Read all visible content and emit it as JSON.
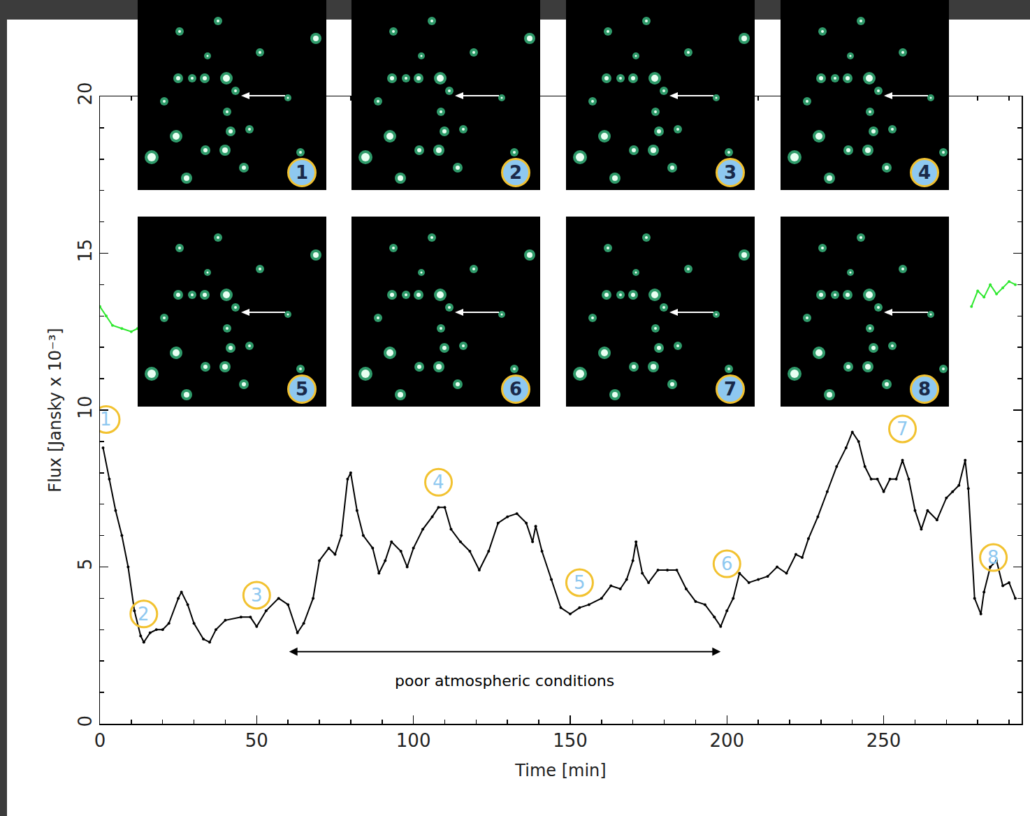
{
  "chart_data": {
    "type": "line",
    "x_label": "Time [min]",
    "y_label": "Flux [Jansky x 10⁻³]",
    "xlim": [
      0,
      294
    ],
    "xticks": [
      0,
      50,
      100,
      150,
      200,
      250
    ],
    "ylim": [
      0,
      20
    ],
    "yticks": [
      0,
      5,
      10,
      15,
      20
    ],
    "grid": false,
    "series": [
      {
        "color": "#000000",
        "marker": "circle",
        "line_style": "solid",
        "x": [
          1,
          3,
          5,
          7,
          9,
          11,
          13,
          14,
          16,
          18,
          20,
          22,
          25,
          26,
          28,
          30,
          33,
          35,
          37,
          40,
          45,
          48,
          50,
          53,
          57,
          60,
          63,
          65,
          68,
          70,
          73,
          75,
          77,
          79,
          80,
          82,
          84,
          87,
          89,
          91,
          93,
          96,
          98,
          100,
          103,
          106,
          108,
          110,
          112,
          115,
          118,
          121,
          124,
          127,
          130,
          133,
          136,
          138,
          139,
          141,
          144,
          147,
          150,
          153,
          156,
          160,
          163,
          166,
          168,
          170,
          171,
          173,
          175,
          178,
          181,
          184,
          187,
          190,
          193,
          196,
          198,
          200,
          202,
          204,
          207,
          210,
          213,
          216,
          219,
          222,
          224,
          226,
          229,
          232,
          235,
          238,
          240,
          242,
          244,
          246,
          248,
          250,
          252,
          254,
          256,
          258,
          260,
          262,
          264,
          267,
          270,
          272,
          274,
          276,
          277,
          279,
          281,
          282,
          284,
          286,
          288,
          290,
          292
        ],
        "values": [
          8.8,
          7.8,
          6.8,
          6.0,
          5.0,
          3.6,
          2.8,
          2.6,
          2.9,
          3.0,
          3.0,
          3.2,
          4.0,
          4.2,
          3.8,
          3.2,
          2.7,
          2.6,
          3.0,
          3.3,
          3.4,
          3.4,
          3.1,
          3.6,
          4.0,
          3.8,
          2.9,
          3.2,
          4.0,
          5.2,
          5.6,
          5.4,
          6.0,
          7.8,
          8.0,
          6.8,
          6.0,
          5.6,
          4.8,
          5.2,
          5.8,
          5.5,
          5.0,
          5.6,
          6.2,
          6.6,
          6.9,
          6.9,
          6.2,
          5.8,
          5.5,
          4.9,
          5.5,
          6.4,
          6.6,
          6.7,
          6.4,
          5.8,
          6.3,
          5.5,
          4.6,
          3.7,
          3.5,
          3.7,
          3.8,
          4.0,
          4.4,
          4.3,
          4.6,
          5.2,
          5.8,
          4.8,
          4.5,
          4.9,
          4.9,
          4.9,
          4.3,
          3.9,
          3.8,
          3.4,
          3.1,
          3.6,
          4.0,
          4.8,
          4.5,
          4.6,
          4.7,
          5.0,
          4.8,
          5.4,
          5.3,
          5.9,
          6.6,
          7.4,
          8.2,
          8.8,
          9.3,
          9.0,
          8.2,
          7.8,
          7.8,
          7.4,
          7.8,
          7.8,
          8.4,
          7.8,
          6.8,
          6.2,
          6.8,
          6.5,
          7.2,
          7.4,
          7.6,
          8.4,
          7.5,
          4.0,
          3.5,
          4.2,
          5.0,
          5.2,
          4.4,
          4.5,
          4.0
        ]
      },
      {
        "color": "#2ee82e",
        "marker": "circle",
        "line_style": "solid",
        "x": [
          0,
          2,
          4,
          7,
          10,
          12,
          150,
          278,
          280,
          282,
          284,
          286,
          288,
          290,
          292
        ],
        "values": [
          13.3,
          13.0,
          12.7,
          12.6,
          12.5,
          12.6,
          null,
          13.3,
          13.8,
          13.6,
          14.0,
          13.7,
          13.9,
          14.1,
          14.0
        ]
      }
    ],
    "point_labels": [
      {
        "text": "1",
        "x": 2,
        "y": 9.7
      },
      {
        "text": "2",
        "x": 14,
        "y": 3.5
      },
      {
        "text": "3",
        "x": 50,
        "y": 4.1
      },
      {
        "text": "4",
        "x": 108,
        "y": 7.7
      },
      {
        "text": "5",
        "x": 153,
        "y": 4.5
      },
      {
        "text": "6",
        "x": 200,
        "y": 5.1
      },
      {
        "text": "7",
        "x": 256,
        "y": 9.4
      },
      {
        "text": "8",
        "x": 285,
        "y": 5.3
      }
    ],
    "span_annotation": {
      "text": "poor atmospheric conditions",
      "x": [
        60,
        198
      ],
      "y": 2.3
    },
    "insets": [
      "1",
      "2",
      "3",
      "4",
      "5",
      "6",
      "7",
      "8"
    ]
  }
}
